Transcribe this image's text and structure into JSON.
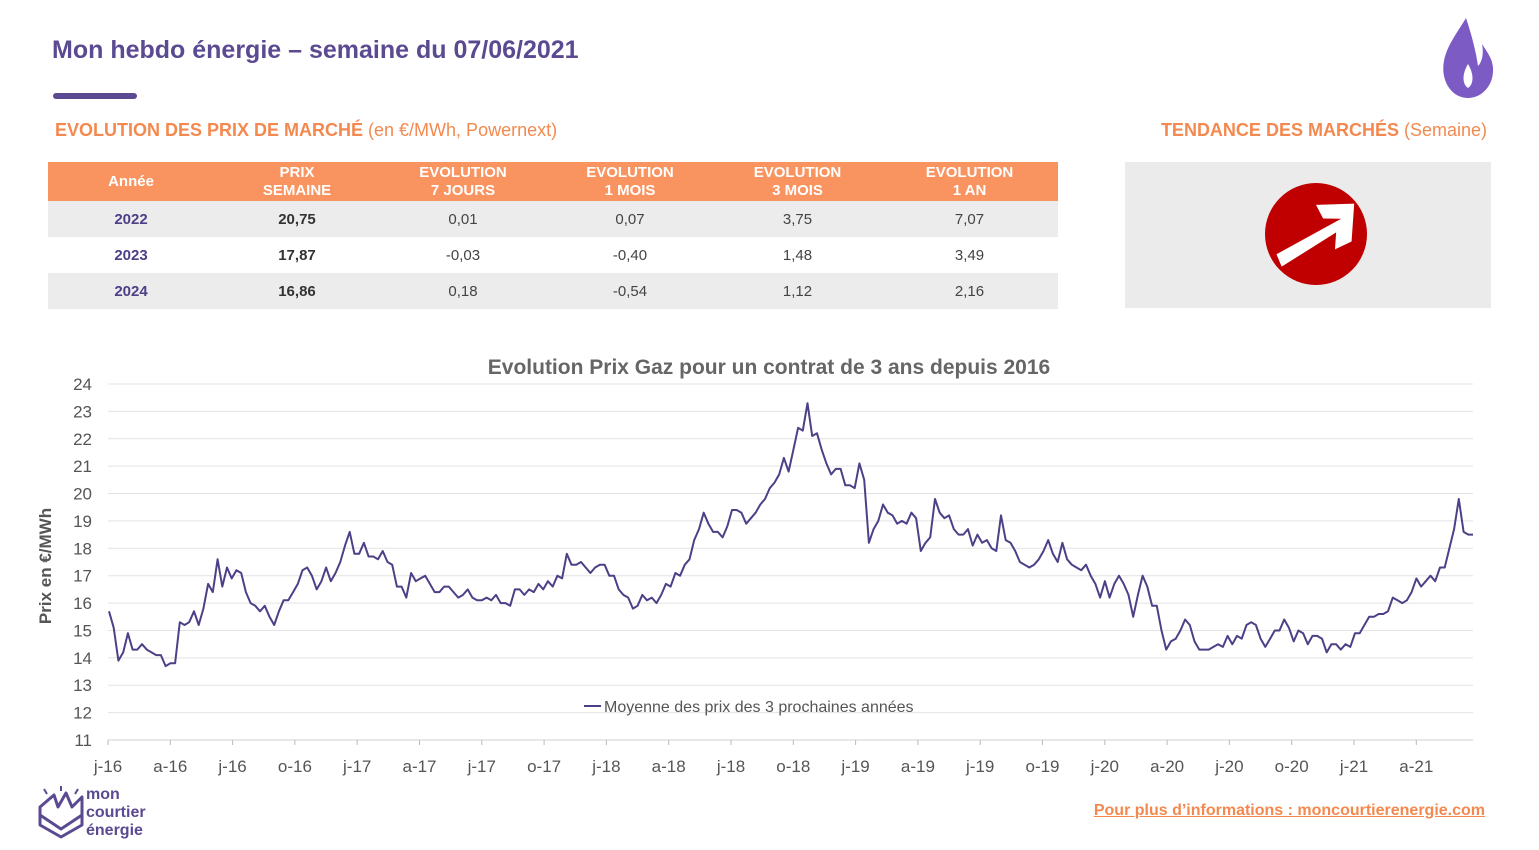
{
  "header": {
    "title": "Mon hebdo énergie – semaine du 07/06/2021"
  },
  "market_section": {
    "title_bold": "EVOLUTION DES PRIX DE MARCHÉ",
    "title_rest": " (en €/MWh, Powernext)",
    "columns": [
      "Année",
      "PRIX\nSEMAINE",
      "EVOLUTION\n7 JOURS",
      "EVOLUTION\n1 MOIS",
      "EVOLUTION\n3 MOIS",
      "EVOLUTION\n1 AN"
    ],
    "rows": [
      {
        "year": "2022",
        "price": "20,75",
        "d7": "0,01",
        "d1m": "0,07",
        "d3m": "3,75",
        "d1y": "7,07"
      },
      {
        "year": "2023",
        "price": "17,87",
        "d7": "-0,03",
        "d1m": "-0,40",
        "d3m": "1,48",
        "d1y": "3,49"
      },
      {
        "year": "2024",
        "price": "16,86",
        "d7": "0,18",
        "d1m": "-0,54",
        "d3m": "1,12",
        "d1y": "2,16"
      }
    ]
  },
  "trend_section": {
    "title_bold": "TENDANCE DES MARCHÉS",
    "title_rest": " (Semaine)",
    "icon": "arrow-up-right-icon",
    "icon_color": "#c00000"
  },
  "colors": {
    "brand": "#5b4a91",
    "accent": "#f9935f",
    "series": "#4e3f86"
  },
  "chart_data": {
    "type": "line",
    "title": "Evolution Prix Gaz pour un contrat de 3 ans depuis 2016",
    "ylabel": "Prix en €/MWh",
    "xlabel": "",
    "ylim": [
      11,
      24
    ],
    "yticks": [
      11,
      12,
      13,
      14,
      15,
      16,
      17,
      18,
      19,
      20,
      21,
      22,
      23,
      24
    ],
    "xticks": [
      "j-16",
      "a-16",
      "j-16",
      "o-16",
      "j-17",
      "a-17",
      "j-17",
      "o-17",
      "j-18",
      "a-18",
      "j-18",
      "o-18",
      "j-19",
      "a-19",
      "j-19",
      "o-19",
      "j-20",
      "a-20",
      "j-20",
      "o-20",
      "j-21",
      "a-21"
    ],
    "grid": true,
    "legend": "inside-bottom-center",
    "series": [
      {
        "name": "Moyenne des prix des 3 prochaines années",
        "values": [
          15.7,
          15.1,
          13.9,
          14.2,
          14.9,
          14.3,
          14.3,
          14.5,
          14.3,
          14.2,
          14.1,
          14.1,
          13.7,
          13.8,
          13.8,
          15.3,
          15.2,
          15.3,
          15.7,
          15.2,
          15.8,
          16.7,
          16.4,
          17.6,
          16.6,
          17.3,
          16.9,
          17.2,
          17.1,
          16.4,
          16.0,
          15.9,
          15.7,
          15.9,
          15.5,
          15.2,
          15.7,
          16.1,
          16.1,
          16.4,
          16.7,
          17.2,
          17.3,
          17.0,
          16.5,
          16.8,
          17.3,
          16.8,
          17.1,
          17.5,
          18.1,
          18.6,
          17.8,
          17.8,
          18.2,
          17.7,
          17.7,
          17.6,
          17.9,
          17.5,
          17.4,
          16.6,
          16.6,
          16.2,
          17.1,
          16.8,
          16.9,
          17.0,
          16.7,
          16.4,
          16.4,
          16.6,
          16.6,
          16.4,
          16.2,
          16.3,
          16.5,
          16.2,
          16.1,
          16.1,
          16.2,
          16.1,
          16.3,
          16.0,
          16.0,
          15.9,
          16.5,
          16.5,
          16.3,
          16.5,
          16.4,
          16.7,
          16.5,
          16.8,
          16.6,
          17.0,
          16.9,
          17.8,
          17.4,
          17.4,
          17.5,
          17.3,
          17.1,
          17.3,
          17.4,
          17.4,
          17.0,
          17.0,
          16.5,
          16.3,
          16.2,
          15.8,
          15.9,
          16.3,
          16.1,
          16.2,
          16.0,
          16.3,
          16.7,
          16.6,
          17.1,
          17.0,
          17.4,
          17.6,
          18.3,
          18.7,
          19.3,
          18.9,
          18.6,
          18.6,
          18.4,
          18.8,
          19.4,
          19.4,
          19.3,
          18.9,
          19.1,
          19.3,
          19.6,
          19.8,
          20.2,
          20.4,
          20.7,
          21.3,
          20.8,
          21.6,
          22.4,
          22.3,
          23.3,
          22.1,
          22.2,
          21.6,
          21.1,
          20.7,
          20.9,
          20.9,
          20.3,
          20.3,
          20.2,
          21.1,
          20.5,
          18.2,
          18.7,
          19.0,
          19.6,
          19.3,
          19.2,
          18.9,
          19.0,
          18.9,
          19.3,
          19.1,
          17.9,
          18.2,
          18.4,
          19.8,
          19.3,
          19.1,
          19.2,
          18.7,
          18.5,
          18.5,
          18.7,
          18.1,
          18.5,
          18.2,
          18.3,
          18.0,
          17.9,
          19.2,
          18.3,
          18.2,
          17.9,
          17.5,
          17.4,
          17.3,
          17.4,
          17.6,
          17.9,
          18.3,
          17.8,
          17.5,
          18.2,
          17.6,
          17.4,
          17.3,
          17.2,
          17.4,
          17.0,
          16.7,
          16.2,
          16.8,
          16.2,
          16.7,
          17.0,
          16.7,
          16.3,
          15.5,
          16.3,
          17.0,
          16.6,
          15.9,
          15.9,
          15.0,
          14.3,
          14.6,
          14.7,
          15.0,
          15.4,
          15.2,
          14.6,
          14.3,
          14.3,
          14.3,
          14.4,
          14.5,
          14.4,
          14.8,
          14.5,
          14.8,
          14.7,
          15.2,
          15.3,
          15.2,
          14.7,
          14.4,
          14.7,
          15.0,
          15.0,
          15.4,
          15.1,
          14.6,
          15.0,
          14.9,
          14.5,
          14.8,
          14.8,
          14.7,
          14.2,
          14.5,
          14.5,
          14.3,
          14.5,
          14.4,
          14.9,
          14.9,
          15.2,
          15.5,
          15.5,
          15.6,
          15.6,
          15.7,
          16.2,
          16.1,
          16.0,
          16.1,
          16.4,
          16.9,
          16.6,
          16.8,
          17.0,
          16.8,
          17.3,
          17.3,
          18.0,
          18.7,
          19.8,
          18.6,
          18.5,
          18.5
        ]
      }
    ]
  },
  "branding": {
    "logo_icon": "mon-courtier-energie-logo-icon",
    "logo_lines": [
      "mon",
      "courtier",
      "énergie"
    ],
    "flame_icon": "flame-icon"
  },
  "footer": {
    "link": "Pour plus d’informations : moncourtierenergie.com"
  }
}
